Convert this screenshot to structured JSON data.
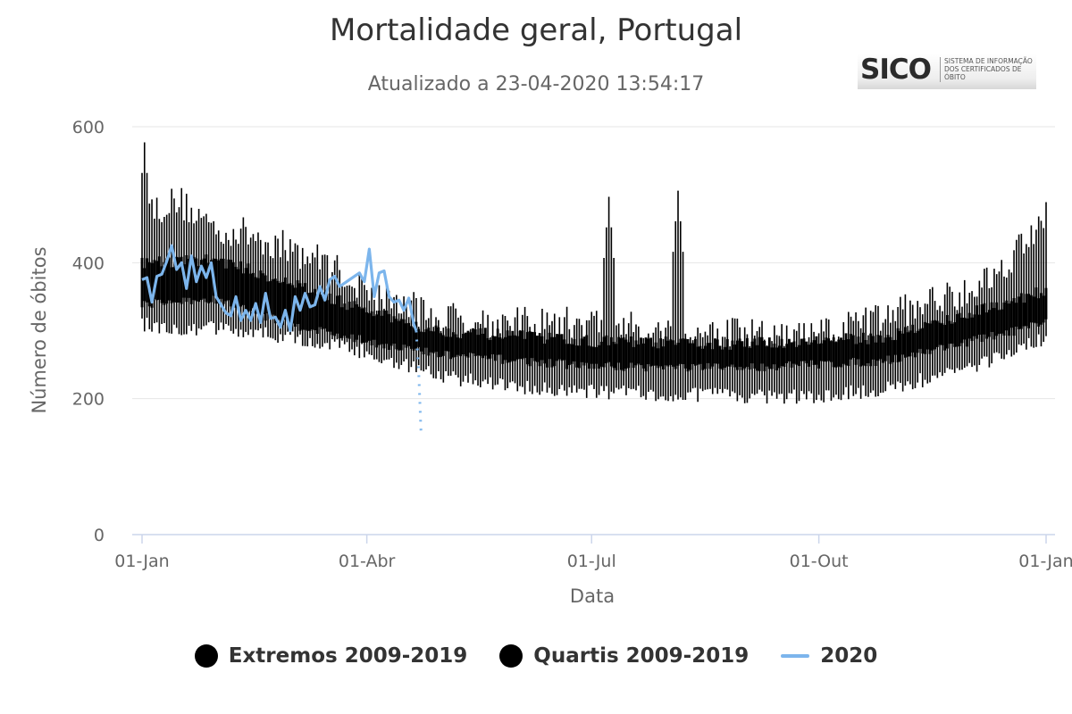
{
  "chart_data": {
    "type": "line",
    "title": "Mortalidade geral, Portugal",
    "subtitle": "Atualizado a 23-04-2020 13:54:17",
    "xlabel": "Data",
    "ylabel": "Número de óbitos",
    "ylim": [
      0,
      600
    ],
    "xlim_days": [
      0,
      366
    ],
    "yticks": [
      0,
      200,
      400,
      600
    ],
    "xticks": [
      {
        "day": 0,
        "label": "01-Jan"
      },
      {
        "day": 91,
        "label": "01-Abr"
      },
      {
        "day": 182,
        "label": "01-Jul"
      },
      {
        "day": 274,
        "label": "01-Out"
      },
      {
        "day": 366,
        "label": "01-Jan"
      }
    ],
    "grid": true,
    "legend": [
      "Extremos 2009-2019",
      "Quartis 2009-2019",
      "2020"
    ],
    "series": [
      {
        "name": "Extremos 2009-2019",
        "color": "#000000",
        "baseline_days": [
          0,
          15,
          30,
          45,
          60,
          75,
          90,
          105,
          120,
          150,
          180,
          210,
          240,
          270,
          300,
          330,
          345,
          366
        ],
        "baseline_min": [
          320,
          315,
          315,
          308,
          300,
          292,
          280,
          262,
          244,
          228,
          222,
          218,
          215,
          213,
          225,
          250,
          270,
          300
        ],
        "baseline_max": [
          475,
          490,
          450,
          440,
          420,
          400,
          360,
          340,
          320,
          310,
          312,
          300,
          295,
          290,
          320,
          355,
          380,
          470
        ],
        "peaks": [
          {
            "day": 1,
            "value": 577
          },
          {
            "day": 189,
            "value": 497
          },
          {
            "day": 217,
            "value": 506
          },
          {
            "day": 363,
            "value": 468
          }
        ]
      },
      {
        "name": "Quartis 2009-2019",
        "color": "#000000",
        "baseline_days": [
          0,
          30,
          60,
          90,
          120,
          180,
          240,
          300,
          330,
          366
        ],
        "baseline_q1": [
          340,
          345,
          310,
          285,
          265,
          248,
          245,
          255,
          280,
          310
        ],
        "baseline_q3": [
          400,
          405,
          370,
          330,
          300,
          285,
          280,
          290,
          320,
          360
        ]
      },
      {
        "name": "2020",
        "color": "#7cb5ec",
        "days": [
          0,
          2,
          4,
          6,
          8,
          10,
          12,
          14,
          16,
          18,
          20,
          22,
          24,
          26,
          28,
          30,
          32,
          34,
          36,
          38,
          40,
          42,
          44,
          46,
          48,
          50,
          52,
          54,
          56,
          58,
          60,
          62,
          64,
          66,
          68,
          70,
          72,
          74,
          76,
          78,
          80,
          82,
          84,
          86,
          88,
          90,
          92,
          94,
          96,
          98,
          100,
          102,
          104,
          106,
          108,
          110,
          111,
          112,
          113
        ],
        "values": [
          375,
          378,
          342,
          380,
          383,
          402,
          425,
          390,
          400,
          362,
          410,
          372,
          395,
          378,
          400,
          350,
          338,
          326,
          322,
          350,
          315,
          330,
          315,
          340,
          312,
          355,
          318,
          320,
          305,
          330,
          300,
          350,
          330,
          355,
          335,
          338,
          365,
          345,
          375,
          380,
          365,
          370,
          375,
          380,
          385,
          372,
          420,
          350,
          385,
          388,
          350,
          342,
          345,
          330,
          348,
          310,
          300,
          240,
          145
        ]
      }
    ]
  }
}
